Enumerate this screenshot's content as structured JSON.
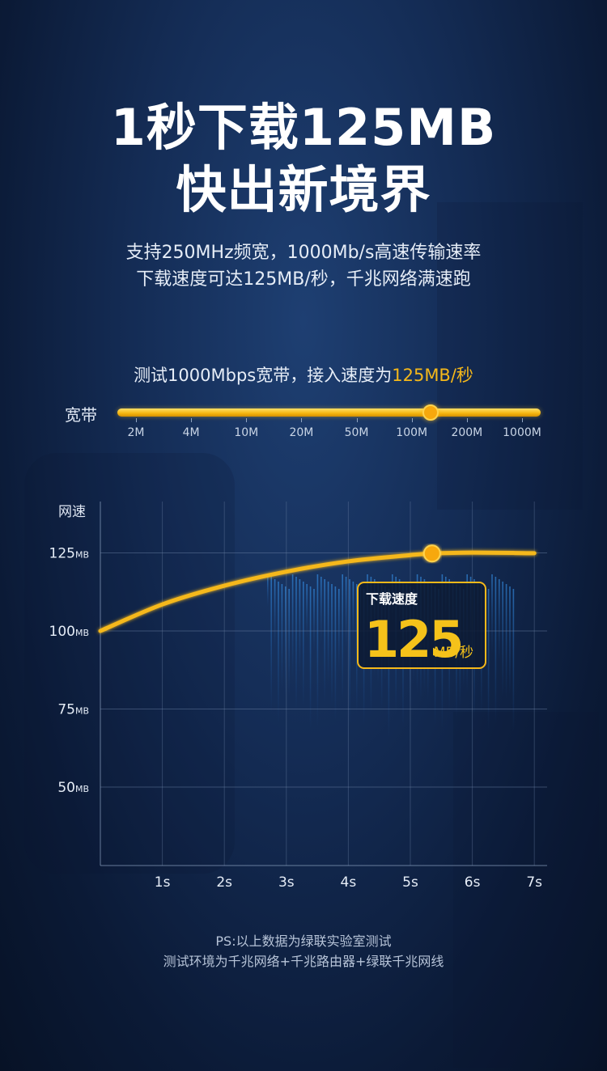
{
  "headline": {
    "line1": "1秒下载125MB",
    "line2": "快出新境界"
  },
  "subtitle": {
    "line1": "支持250MHz频宽，1000Mb/s高速传输速率",
    "line2": "下载速度可达125MB/秒，千兆网络满速跑"
  },
  "bandwidth": {
    "title_prefix": "测试1000Mbps宽带，接入速度为",
    "title_highlight": "125MB/秒",
    "label": "宽带",
    "ticks": [
      "2M",
      "4M",
      "10M",
      "20M",
      "50M",
      "100M",
      "200M",
      "1000M"
    ],
    "selected_position": 0.74,
    "accent_color": "#f5b81a"
  },
  "chart_data": {
    "type": "line",
    "ylabel": "网速",
    "y_ticks": [
      {
        "value": 125,
        "label": "125",
        "unit": "MB"
      },
      {
        "value": 100,
        "label": "100",
        "unit": "MB"
      },
      {
        "value": 75,
        "label": "75",
        "unit": "MB"
      },
      {
        "value": 50,
        "label": "50",
        "unit": "MB"
      }
    ],
    "x_ticks": [
      "1s",
      "2s",
      "3s",
      "4s",
      "5s",
      "6s",
      "7s"
    ],
    "xlim": [
      0,
      7
    ],
    "ylim": [
      25,
      135
    ],
    "grid": true,
    "series": [
      {
        "points": [
          {
            "x": 0,
            "y": 100
          },
          {
            "x": 1,
            "y": 108.5
          },
          {
            "x": 2,
            "y": 114.5
          },
          {
            "x": 3,
            "y": 119
          },
          {
            "x": 4,
            "y": 122.3
          },
          {
            "x": 5,
            "y": 124.3
          },
          {
            "x": 5.35,
            "y": 124.8
          },
          {
            "x": 6,
            "y": 125.1
          },
          {
            "x": 7,
            "y": 124.9
          }
        ],
        "color": "#f5b81a"
      }
    ],
    "marker": {
      "x": 5.35,
      "y": 124.8
    },
    "callout": {
      "label": "下载速度",
      "value": "125",
      "unit": "MB/秒"
    }
  },
  "footnote": {
    "line1": "PS:以上数据为绿联实验室测试",
    "line2": "测试环境为千兆网络+千兆路由器+绿联千兆网线"
  }
}
